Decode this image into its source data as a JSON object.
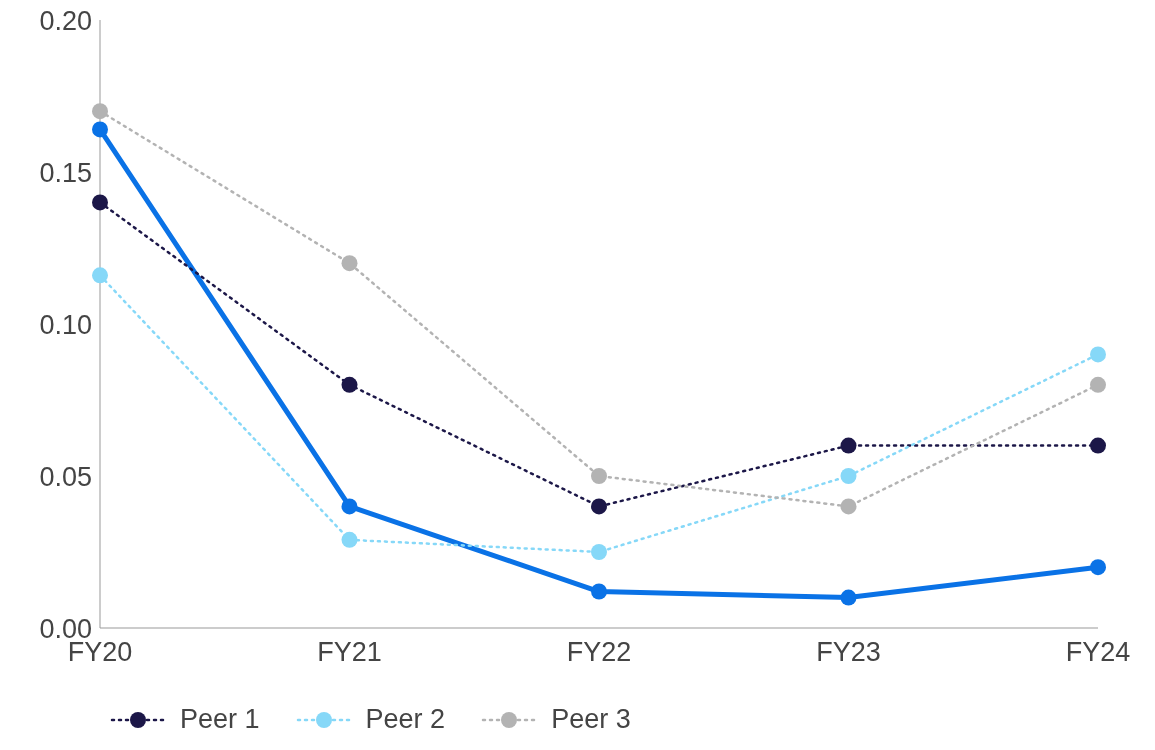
{
  "chart_data": {
    "type": "line",
    "categories": [
      "FY20",
      "FY21",
      "FY22",
      "FY23",
      "FY24"
    ],
    "series": [
      {
        "color": "#0a72e6",
        "values": [
          0.164,
          0.04,
          0.012,
          0.01,
          0.02
        ],
        "line_style": "solid"
      },
      {
        "name": "Peer 1",
        "color": "#1c1748",
        "values": [
          0.14,
          0.08,
          0.04,
          0.06,
          0.06
        ],
        "line_style": "dotted"
      },
      {
        "name": "Peer 2",
        "color": "#86d8f8",
        "values": [
          0.116,
          0.029,
          0.025,
          0.05,
          0.09
        ],
        "line_style": "dotted"
      },
      {
        "name": "Peer 3",
        "color": "#b3b3b3",
        "values": [
          0.17,
          0.12,
          0.05,
          0.04,
          0.08
        ],
        "line_style": "dotted"
      }
    ],
    "ylim": [
      0,
      0.2
    ],
    "yticks": [
      {
        "value": 0,
        "label": "0.00"
      },
      {
        "value": 0.05,
        "label": "0.05"
      },
      {
        "value": 0.1,
        "label": "0.10"
      },
      {
        "value": 0.15,
        "label": "0.15"
      },
      {
        "value": 0.2,
        "label": "0.20"
      }
    ],
    "marker": "circle",
    "grid": false,
    "legend": "bottom"
  }
}
